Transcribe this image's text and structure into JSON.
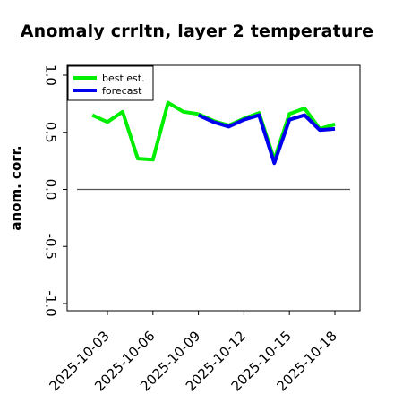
{
  "chart_data": {
    "type": "line",
    "title": "Anomaly crrltn, layer 2 temperature",
    "ylabel": "anom. corr.",
    "xlabel": "",
    "ylim": [
      -1.0,
      1.0
    ],
    "y_ticks": [
      "-1.0",
      "-0.5",
      "0.0",
      "0.5",
      "1.0"
    ],
    "x_ticks": [
      "2025-10-03",
      "2025-10-06",
      "2025-10-09",
      "2025-10-12",
      "2025-10-15",
      "2025-10-18"
    ],
    "highlight_tick": "2025-10-09",
    "highlight_color": "#1a7a1a",
    "reference_line": 0.0,
    "legend_position": "top-left",
    "series": [
      {
        "name": "best est.",
        "color": "#00ee00",
        "x": [
          "2025-10-02",
          "2025-10-03",
          "2025-10-04",
          "2025-10-05",
          "2025-10-06",
          "2025-10-07",
          "2025-10-08",
          "2025-10-09"
        ],
        "values": [
          0.65,
          0.59,
          0.68,
          0.27,
          0.26,
          0.76,
          0.68,
          0.66
        ]
      },
      {
        "name": "forecast",
        "color": "#0000ee",
        "x": [
          "2025-10-09",
          "2025-10-10",
          "2025-10-11",
          "2025-10-12",
          "2025-10-13",
          "2025-10-14",
          "2025-10-15",
          "2025-10-16",
          "2025-10-17",
          "2025-10-18"
        ],
        "values": [
          0.65,
          0.59,
          0.55,
          0.61,
          0.65,
          0.23,
          0.61,
          0.65,
          0.52,
          0.53
        ]
      },
      {
        "name": "",
        "color": "#00ee00",
        "x": [
          "2025-10-09",
          "2025-10-10",
          "2025-10-11",
          "2025-10-12",
          "2025-10-13",
          "2025-10-14",
          "2025-10-15",
          "2025-10-16",
          "2025-10-17",
          "2025-10-18"
        ],
        "values": [
          0.66,
          0.6,
          0.56,
          0.62,
          0.67,
          0.26,
          0.66,
          0.71,
          0.53,
          0.57
        ]
      }
    ]
  }
}
